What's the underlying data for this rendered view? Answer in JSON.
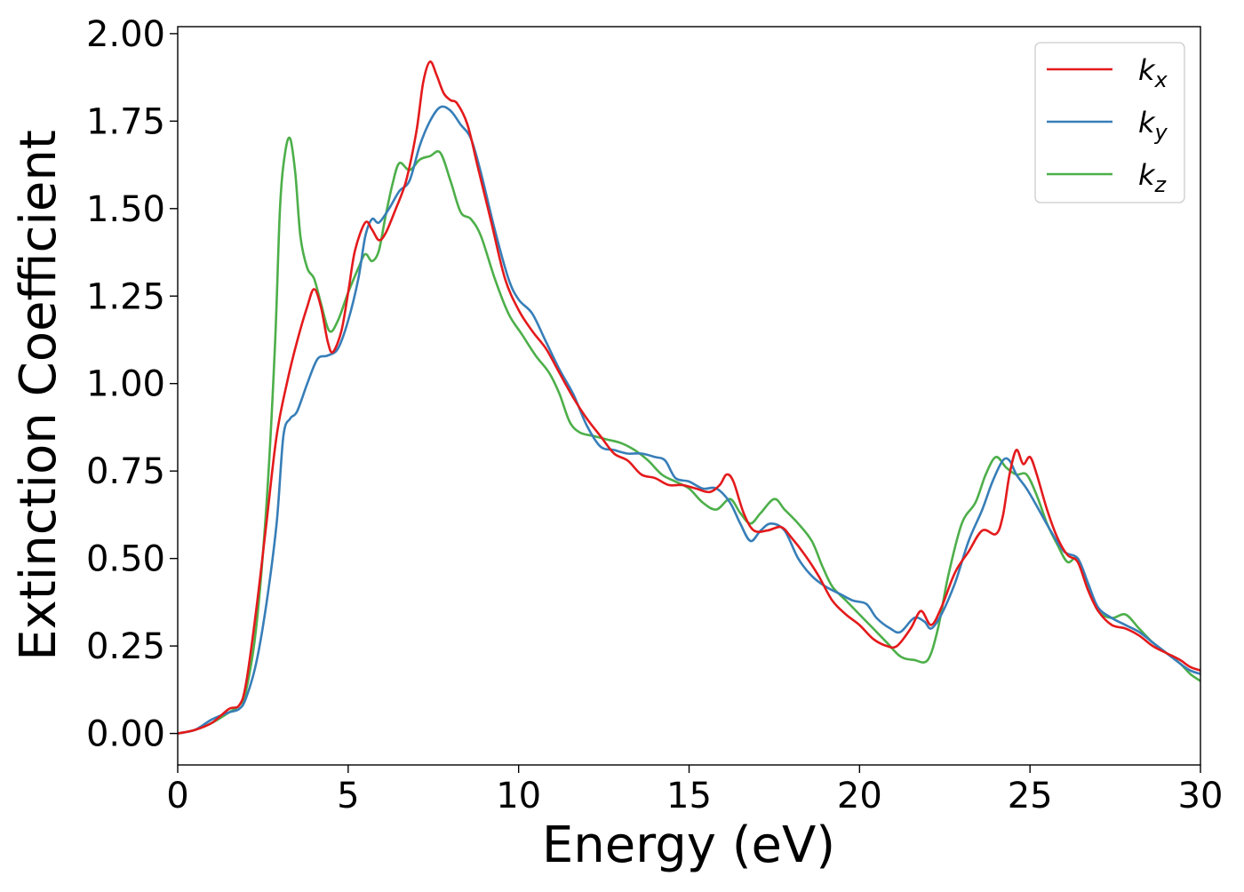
{
  "chart_data": {
    "type": "line",
    "title": "",
    "xlabel": "Energy (eV)",
    "ylabel": "Extinction Coefficient",
    "xlim": [
      0,
      30
    ],
    "ylim": [
      -0.09,
      2.02
    ],
    "xticks": [
      0,
      5,
      10,
      15,
      20,
      25,
      30
    ],
    "xtick_labels": [
      "0",
      "5",
      "10",
      "15",
      "20",
      "25",
      "30"
    ],
    "yticks": [
      0,
      0.25,
      0.5,
      0.75,
      1.0,
      1.25,
      1.5,
      1.75,
      2.0
    ],
    "ytick_labels": [
      "0.00",
      "0.25",
      "0.50",
      "0.75",
      "1.00",
      "1.25",
      "1.50",
      "1.75",
      "2.00"
    ],
    "grid": false,
    "legend_position": "top-right",
    "series": [
      {
        "name": "k_x",
        "label_base": "k",
        "label_sub": "x",
        "color": "#e41a1c",
        "points": [
          [
            0,
            0
          ],
          [
            0.5,
            0.01
          ],
          [
            1.0,
            0.03
          ],
          [
            1.5,
            0.07
          ],
          [
            1.8,
            0.08
          ],
          [
            2.0,
            0.14
          ],
          [
            2.3,
            0.35
          ],
          [
            2.6,
            0.6
          ],
          [
            2.9,
            0.85
          ],
          [
            3.2,
            1.0
          ],
          [
            3.5,
            1.12
          ],
          [
            3.8,
            1.22
          ],
          [
            4.0,
            1.27
          ],
          [
            4.2,
            1.22
          ],
          [
            4.4,
            1.12
          ],
          [
            4.55,
            1.09
          ],
          [
            4.8,
            1.15
          ],
          [
            5.0,
            1.26
          ],
          [
            5.2,
            1.38
          ],
          [
            5.5,
            1.46
          ],
          [
            5.7,
            1.44
          ],
          [
            5.9,
            1.41
          ],
          [
            6.1,
            1.43
          ],
          [
            6.4,
            1.5
          ],
          [
            6.7,
            1.58
          ],
          [
            7.0,
            1.72
          ],
          [
            7.2,
            1.86
          ],
          [
            7.4,
            1.92
          ],
          [
            7.6,
            1.88
          ],
          [
            7.8,
            1.83
          ],
          [
            8.0,
            1.81
          ],
          [
            8.2,
            1.8
          ],
          [
            8.5,
            1.74
          ],
          [
            8.8,
            1.62
          ],
          [
            9.2,
            1.46
          ],
          [
            9.6,
            1.3
          ],
          [
            10.0,
            1.21
          ],
          [
            10.4,
            1.15
          ],
          [
            10.8,
            1.1
          ],
          [
            11.2,
            1.03
          ],
          [
            11.6,
            0.96
          ],
          [
            12.0,
            0.9
          ],
          [
            12.4,
            0.85
          ],
          [
            12.8,
            0.8
          ],
          [
            13.2,
            0.78
          ],
          [
            13.6,
            0.74
          ],
          [
            14.0,
            0.73
          ],
          [
            14.4,
            0.71
          ],
          [
            14.8,
            0.71
          ],
          [
            15.2,
            0.7
          ],
          [
            15.6,
            0.69
          ],
          [
            15.9,
            0.71
          ],
          [
            16.1,
            0.74
          ],
          [
            16.3,
            0.72
          ],
          [
            16.6,
            0.63
          ],
          [
            16.9,
            0.58
          ],
          [
            17.3,
            0.58
          ],
          [
            17.7,
            0.59
          ],
          [
            18.0,
            0.56
          ],
          [
            18.4,
            0.51
          ],
          [
            18.8,
            0.45
          ],
          [
            19.2,
            0.38
          ],
          [
            19.6,
            0.34
          ],
          [
            20.0,
            0.31
          ],
          [
            20.4,
            0.27
          ],
          [
            20.8,
            0.25
          ],
          [
            21.1,
            0.25
          ],
          [
            21.5,
            0.3
          ],
          [
            21.8,
            0.35
          ],
          [
            22.1,
            0.31
          ],
          [
            22.4,
            0.36
          ],
          [
            22.8,
            0.46
          ],
          [
            23.2,
            0.52
          ],
          [
            23.6,
            0.58
          ],
          [
            24.0,
            0.57
          ],
          [
            24.2,
            0.62
          ],
          [
            24.4,
            0.74
          ],
          [
            24.6,
            0.81
          ],
          [
            24.8,
            0.77
          ],
          [
            25.0,
            0.79
          ],
          [
            25.2,
            0.74
          ],
          [
            25.5,
            0.64
          ],
          [
            25.8,
            0.56
          ],
          [
            26.1,
            0.51
          ],
          [
            26.4,
            0.49
          ],
          [
            26.7,
            0.41
          ],
          [
            27.0,
            0.35
          ],
          [
            27.4,
            0.31
          ],
          [
            27.8,
            0.3
          ],
          [
            28.2,
            0.28
          ],
          [
            28.6,
            0.25
          ],
          [
            29.0,
            0.23
          ],
          [
            29.4,
            0.21
          ],
          [
            29.7,
            0.19
          ],
          [
            30.0,
            0.18
          ]
        ]
      },
      {
        "name": "k_y",
        "label_base": "k",
        "label_sub": "y",
        "color": "#377eb8",
        "points": [
          [
            0,
            0
          ],
          [
            0.5,
            0.01
          ],
          [
            1.0,
            0.04
          ],
          [
            1.5,
            0.06
          ],
          [
            1.8,
            0.07
          ],
          [
            2.0,
            0.1
          ],
          [
            2.3,
            0.2
          ],
          [
            2.6,
            0.37
          ],
          [
            2.9,
            0.6
          ],
          [
            3.1,
            0.85
          ],
          [
            3.3,
            0.9
          ],
          [
            3.5,
            0.92
          ],
          [
            3.8,
            1.0
          ],
          [
            4.1,
            1.07
          ],
          [
            4.4,
            1.08
          ],
          [
            4.7,
            1.1
          ],
          [
            5.0,
            1.18
          ],
          [
            5.3,
            1.3
          ],
          [
            5.5,
            1.42
          ],
          [
            5.7,
            1.47
          ],
          [
            5.9,
            1.46
          ],
          [
            6.2,
            1.5
          ],
          [
            6.5,
            1.55
          ],
          [
            6.8,
            1.58
          ],
          [
            7.1,
            1.68
          ],
          [
            7.4,
            1.75
          ],
          [
            7.7,
            1.79
          ],
          [
            8.0,
            1.78
          ],
          [
            8.3,
            1.74
          ],
          [
            8.6,
            1.7
          ],
          [
            8.9,
            1.6
          ],
          [
            9.3,
            1.44
          ],
          [
            9.7,
            1.3
          ],
          [
            10.0,
            1.24
          ],
          [
            10.4,
            1.2
          ],
          [
            10.8,
            1.12
          ],
          [
            11.2,
            1.04
          ],
          [
            11.6,
            0.97
          ],
          [
            12.0,
            0.88
          ],
          [
            12.4,
            0.82
          ],
          [
            12.8,
            0.81
          ],
          [
            13.2,
            0.8
          ],
          [
            13.6,
            0.8
          ],
          [
            14.0,
            0.79
          ],
          [
            14.3,
            0.78
          ],
          [
            14.6,
            0.73
          ],
          [
            15.0,
            0.72
          ],
          [
            15.4,
            0.7
          ],
          [
            15.8,
            0.7
          ],
          [
            16.2,
            0.66
          ],
          [
            16.5,
            0.6
          ],
          [
            16.8,
            0.55
          ],
          [
            17.1,
            0.58
          ],
          [
            17.4,
            0.6
          ],
          [
            17.8,
            0.58
          ],
          [
            18.2,
            0.5
          ],
          [
            18.6,
            0.45
          ],
          [
            19.0,
            0.42
          ],
          [
            19.4,
            0.4
          ],
          [
            19.8,
            0.38
          ],
          [
            20.2,
            0.37
          ],
          [
            20.5,
            0.33
          ],
          [
            20.9,
            0.3
          ],
          [
            21.2,
            0.29
          ],
          [
            21.6,
            0.33
          ],
          [
            21.9,
            0.32
          ],
          [
            22.1,
            0.3
          ],
          [
            22.4,
            0.34
          ],
          [
            22.8,
            0.43
          ],
          [
            23.2,
            0.55
          ],
          [
            23.6,
            0.64
          ],
          [
            23.9,
            0.72
          ],
          [
            24.2,
            0.78
          ],
          [
            24.4,
            0.78
          ],
          [
            24.6,
            0.74
          ],
          [
            24.9,
            0.7
          ],
          [
            25.2,
            0.65
          ],
          [
            25.6,
            0.58
          ],
          [
            26.0,
            0.52
          ],
          [
            26.4,
            0.5
          ],
          [
            26.7,
            0.43
          ],
          [
            27.0,
            0.36
          ],
          [
            27.4,
            0.33
          ],
          [
            27.8,
            0.31
          ],
          [
            28.2,
            0.29
          ],
          [
            28.6,
            0.26
          ],
          [
            29.0,
            0.23
          ],
          [
            29.4,
            0.2
          ],
          [
            29.7,
            0.18
          ],
          [
            30.0,
            0.17
          ]
        ]
      },
      {
        "name": "k_z",
        "label_base": "k",
        "label_sub": "z",
        "color": "#4daf4a",
        "points": [
          [
            0,
            0
          ],
          [
            0.5,
            0.01
          ],
          [
            1.0,
            0.03
          ],
          [
            1.5,
            0.06
          ],
          [
            1.8,
            0.08
          ],
          [
            2.0,
            0.12
          ],
          [
            2.3,
            0.3
          ],
          [
            2.6,
            0.65
          ],
          [
            2.85,
            1.1
          ],
          [
            3.0,
            1.5
          ],
          [
            3.15,
            1.66
          ],
          [
            3.3,
            1.7
          ],
          [
            3.45,
            1.6
          ],
          [
            3.6,
            1.42
          ],
          [
            3.8,
            1.33
          ],
          [
            4.0,
            1.3
          ],
          [
            4.2,
            1.23
          ],
          [
            4.45,
            1.15
          ],
          [
            4.7,
            1.18
          ],
          [
            5.0,
            1.26
          ],
          [
            5.3,
            1.33
          ],
          [
            5.5,
            1.37
          ],
          [
            5.7,
            1.35
          ],
          [
            5.9,
            1.38
          ],
          [
            6.1,
            1.48
          ],
          [
            6.3,
            1.57
          ],
          [
            6.5,
            1.63
          ],
          [
            6.8,
            1.61
          ],
          [
            7.1,
            1.64
          ],
          [
            7.4,
            1.65
          ],
          [
            7.7,
            1.66
          ],
          [
            8.0,
            1.58
          ],
          [
            8.3,
            1.49
          ],
          [
            8.6,
            1.47
          ],
          [
            8.9,
            1.42
          ],
          [
            9.3,
            1.3
          ],
          [
            9.7,
            1.2
          ],
          [
            10.1,
            1.14
          ],
          [
            10.5,
            1.08
          ],
          [
            10.9,
            1.03
          ],
          [
            11.2,
            0.97
          ],
          [
            11.5,
            0.89
          ],
          [
            11.8,
            0.86
          ],
          [
            12.2,
            0.85
          ],
          [
            12.6,
            0.84
          ],
          [
            13.0,
            0.83
          ],
          [
            13.4,
            0.81
          ],
          [
            13.8,
            0.78
          ],
          [
            14.2,
            0.74
          ],
          [
            14.6,
            0.72
          ],
          [
            15.0,
            0.7
          ],
          [
            15.4,
            0.66
          ],
          [
            15.8,
            0.64
          ],
          [
            16.2,
            0.67
          ],
          [
            16.5,
            0.63
          ],
          [
            16.8,
            0.6
          ],
          [
            17.1,
            0.63
          ],
          [
            17.5,
            0.67
          ],
          [
            17.8,
            0.64
          ],
          [
            18.2,
            0.6
          ],
          [
            18.6,
            0.55
          ],
          [
            18.9,
            0.48
          ],
          [
            19.2,
            0.42
          ],
          [
            19.6,
            0.38
          ],
          [
            20.0,
            0.34
          ],
          [
            20.4,
            0.3
          ],
          [
            20.8,
            0.26
          ],
          [
            21.2,
            0.22
          ],
          [
            21.6,
            0.21
          ],
          [
            22.0,
            0.21
          ],
          [
            22.3,
            0.3
          ],
          [
            22.6,
            0.45
          ],
          [
            23.0,
            0.6
          ],
          [
            23.4,
            0.66
          ],
          [
            23.7,
            0.74
          ],
          [
            24.0,
            0.79
          ],
          [
            24.3,
            0.76
          ],
          [
            24.6,
            0.74
          ],
          [
            24.9,
            0.74
          ],
          [
            25.2,
            0.68
          ],
          [
            25.5,
            0.6
          ],
          [
            25.8,
            0.54
          ],
          [
            26.1,
            0.49
          ],
          [
            26.4,
            0.5
          ],
          [
            26.7,
            0.42
          ],
          [
            27.0,
            0.35
          ],
          [
            27.4,
            0.33
          ],
          [
            27.8,
            0.34
          ],
          [
            28.2,
            0.3
          ],
          [
            28.6,
            0.26
          ],
          [
            29.0,
            0.23
          ],
          [
            29.4,
            0.2
          ],
          [
            29.7,
            0.17
          ],
          [
            30.0,
            0.15
          ]
        ]
      }
    ]
  }
}
